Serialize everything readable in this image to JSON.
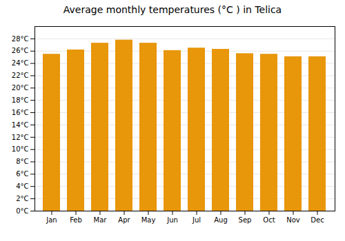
{
  "chart_data": {
    "type": "bar",
    "title": "Average monthly temperatures (°C ) in Telica",
    "categories": [
      "Jan",
      "Feb",
      "Mar",
      "Apr",
      "May",
      "Jun",
      "Jul",
      "Aug",
      "Sep",
      "Oct",
      "Nov",
      "Dec"
    ],
    "values": [
      25.5,
      26.2,
      27.3,
      27.8,
      27.3,
      26.1,
      26.5,
      26.3,
      25.6,
      25.5,
      25.1,
      25.1
    ],
    "color": "#E8960A",
    "ylim": [
      0,
      30
    ],
    "yticks": [
      {
        "value": 0,
        "label": "0°C"
      },
      {
        "value": 2,
        "label": "2°C"
      },
      {
        "value": 4,
        "label": "4°C"
      },
      {
        "value": 6,
        "label": "6°C"
      },
      {
        "value": 8,
        "label": "8°C"
      },
      {
        "value": 10,
        "label": "10°C"
      },
      {
        "value": 12,
        "label": "12°C"
      },
      {
        "value": 14,
        "label": "14°C"
      },
      {
        "value": 16,
        "label": "16°C"
      },
      {
        "value": 18,
        "label": "18°C"
      },
      {
        "value": 20,
        "label": "20°C"
      },
      {
        "value": 22,
        "label": "22°C"
      },
      {
        "value": 24,
        "label": "24°C"
      },
      {
        "value": 26,
        "label": "26°C"
      },
      {
        "value": 28,
        "label": "28°C"
      }
    ],
    "grid": true
  }
}
